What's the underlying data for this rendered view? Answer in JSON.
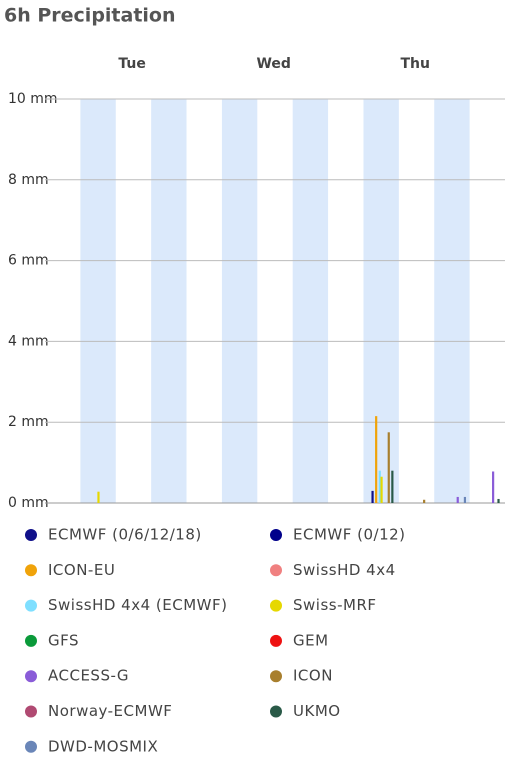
{
  "chart_data": {
    "type": "bar",
    "title": "6h Precipitation",
    "days": [
      "Tue",
      "Wed",
      "Thu"
    ],
    "ylim": [
      0,
      10
    ],
    "yticks": [
      {
        "value": 0,
        "label": "0 mm"
      },
      {
        "value": 2,
        "label": "2 mm"
      },
      {
        "value": 4,
        "label": "4 mm"
      },
      {
        "value": 6,
        "label": "6 mm"
      },
      {
        "value": 8,
        "label": "8 mm"
      },
      {
        "value": 10,
        "label": "10 mm"
      }
    ],
    "grid": true,
    "series": [
      {
        "name": "ECMWF (0/6/12/18)",
        "color": "#10108a",
        "values": [
          0,
          0,
          0,
          0,
          0,
          0,
          0,
          0,
          0,
          0.3,
          0,
          0,
          0
        ]
      },
      {
        "name": "ECMWF (0/12)",
        "color": "#00008b",
        "values": [
          0,
          0,
          0,
          0,
          0,
          0,
          0,
          0,
          0,
          0,
          0,
          0,
          0
        ]
      },
      {
        "name": "ICON-EU",
        "color": "#f0a30a",
        "values": [
          0,
          0,
          0,
          0,
          0,
          0,
          0,
          0,
          0,
          2.15,
          0,
          0,
          0
        ]
      },
      {
        "name": "SwissHD 4x4",
        "color": "#f08080",
        "values": [
          0,
          0,
          0,
          0,
          0,
          0,
          0,
          0,
          0,
          0,
          0,
          0,
          0
        ]
      },
      {
        "name": "SwissHD 4x4 (ECMWF)",
        "color": "#7fdfff",
        "values": [
          0,
          0,
          0,
          0,
          0,
          0,
          0,
          0,
          0,
          0.8,
          0,
          0,
          0
        ]
      },
      {
        "name": "Swiss-MRF",
        "color": "#e6d800",
        "values": [
          0,
          0.28,
          0,
          0,
          0,
          0,
          0,
          0,
          0,
          0.65,
          0,
          0,
          0
        ]
      },
      {
        "name": "GFS",
        "color": "#0a9a3a",
        "values": [
          0,
          0,
          0,
          0,
          0,
          0,
          0,
          0,
          0,
          0,
          0,
          0,
          0
        ]
      },
      {
        "name": "GEM",
        "color": "#ee1111",
        "values": [
          0,
          0,
          0,
          0,
          0,
          0,
          0,
          0,
          0,
          0,
          0,
          0,
          0
        ]
      },
      {
        "name": "ACCESS-G",
        "color": "#8a5cd8",
        "values": [
          0,
          0,
          0,
          0,
          0,
          0,
          0,
          0,
          0,
          0,
          0,
          0.15,
          0.78
        ]
      },
      {
        "name": "ICON",
        "color": "#a87f2e",
        "values": [
          0,
          0,
          0,
          0,
          0,
          0,
          0,
          0,
          0,
          1.75,
          0.08,
          0,
          0
        ]
      },
      {
        "name": "Norway-ECMWF",
        "color": "#b04a72",
        "values": [
          0,
          0,
          0,
          0,
          0,
          0,
          0,
          0,
          0,
          0,
          0,
          0,
          0
        ]
      },
      {
        "name": "UKMO",
        "color": "#2a5a48",
        "values": [
          0,
          0,
          0,
          0,
          0,
          0,
          0,
          0,
          0,
          0.8,
          0,
          0,
          0.1
        ]
      },
      {
        "name": "DWD-MOSMIX",
        "color": "#6a86b8",
        "values": [
          0,
          0,
          0,
          0,
          0,
          0,
          0,
          0,
          0,
          0,
          0,
          0.15,
          0
        ]
      }
    ]
  }
}
